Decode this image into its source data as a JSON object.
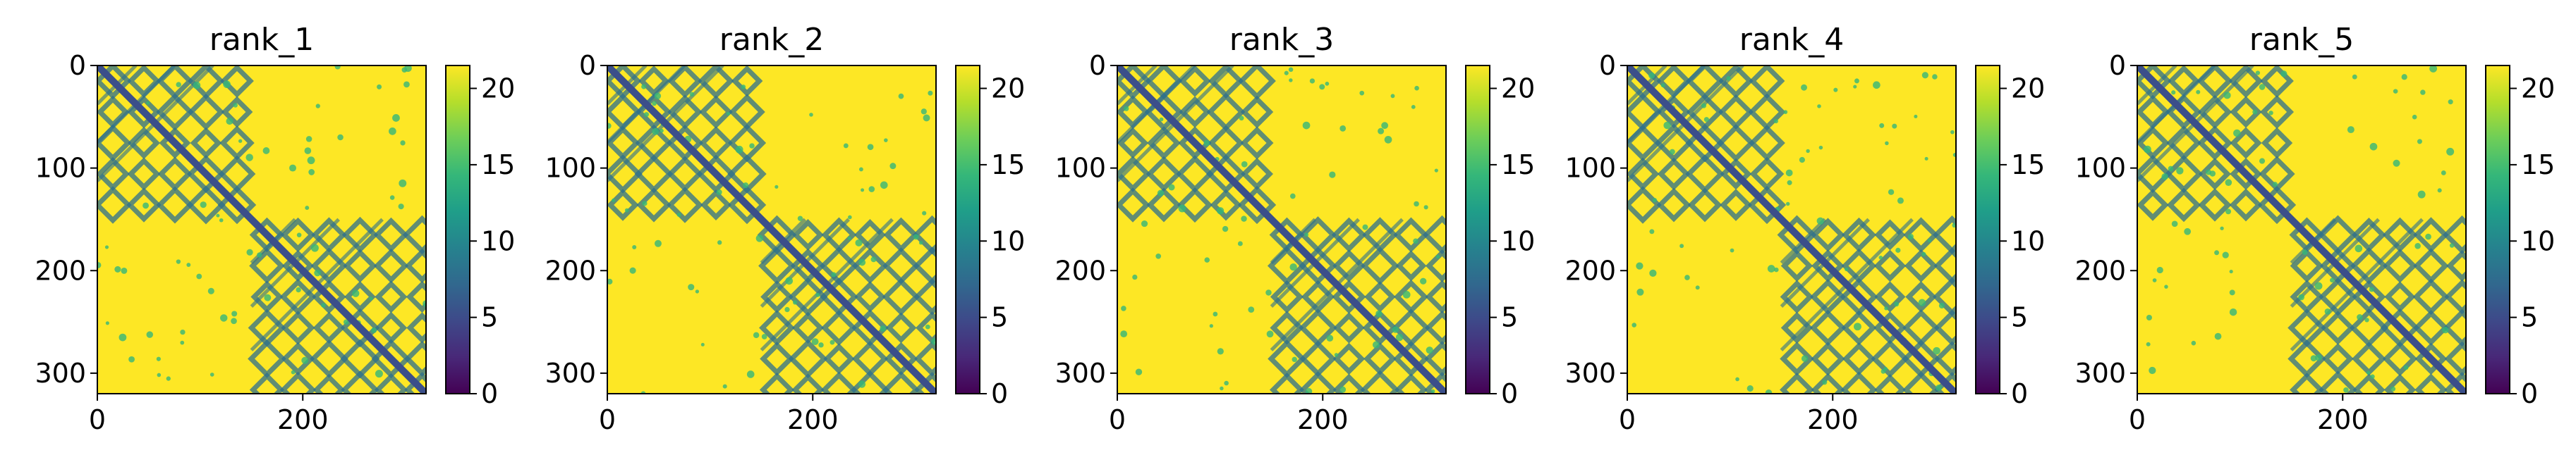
{
  "figure": {
    "background": "#ffffff"
  },
  "chart_data": [
    {
      "type": "heatmap",
      "title": "rank_1",
      "xlim": [
        0,
        320
      ],
      "ylim": [
        320,
        0
      ],
      "x_ticks": [
        0,
        200
      ],
      "y_ticks": [
        0,
        100,
        200,
        300
      ],
      "colorbar": {
        "min": 0,
        "max": 21.5,
        "ticks": [
          0,
          5,
          10,
          15,
          20
        ],
        "colormap": "viridis"
      },
      "features": {
        "diagonal": {
          "from": [
            0,
            0
          ],
          "to": [
            320,
            320
          ],
          "value": 3
        },
        "blocks": [
          {
            "x": [
              0,
              150
            ],
            "y": [
              0,
              150
            ],
            "value": 6
          },
          {
            "x": [
              150,
              320
            ],
            "y": [
              150,
              320
            ],
            "value": 6
          }
        ]
      }
    },
    {
      "type": "heatmap",
      "title": "rank_2",
      "xlim": [
        0,
        320
      ],
      "ylim": [
        320,
        0
      ],
      "x_ticks": [
        0,
        200
      ],
      "y_ticks": [
        0,
        100,
        200,
        300
      ],
      "colorbar": {
        "min": 0,
        "max": 21.5,
        "ticks": [
          0,
          5,
          10,
          15,
          20
        ],
        "colormap": "viridis"
      },
      "features": {
        "diagonal": {
          "from": [
            0,
            0
          ],
          "to": [
            320,
            320
          ],
          "value": 3
        },
        "blocks": [
          {
            "x": [
              0,
              150
            ],
            "y": [
              0,
              150
            ],
            "value": 6
          },
          {
            "x": [
              150,
              320
            ],
            "y": [
              150,
              320
            ],
            "value": 6
          }
        ]
      }
    },
    {
      "type": "heatmap",
      "title": "rank_3",
      "xlim": [
        0,
        320
      ],
      "ylim": [
        320,
        0
      ],
      "x_ticks": [
        0,
        200
      ],
      "y_ticks": [
        0,
        100,
        200,
        300
      ],
      "colorbar": {
        "min": 0,
        "max": 21.5,
        "ticks": [
          0,
          5,
          10,
          15,
          20
        ],
        "colormap": "viridis"
      },
      "features": {
        "diagonal": {
          "from": [
            0,
            0
          ],
          "to": [
            320,
            320
          ],
          "value": 3
        },
        "blocks": [
          {
            "x": [
              0,
              150
            ],
            "y": [
              0,
              150
            ],
            "value": 6
          },
          {
            "x": [
              150,
              320
            ],
            "y": [
              150,
              320
            ],
            "value": 6
          }
        ]
      }
    },
    {
      "type": "heatmap",
      "title": "rank_4",
      "xlim": [
        0,
        320
      ],
      "ylim": [
        320,
        0
      ],
      "x_ticks": [
        0,
        200
      ],
      "y_ticks": [
        0,
        100,
        200,
        300
      ],
      "colorbar": {
        "min": 0,
        "max": 21.5,
        "ticks": [
          0,
          5,
          10,
          15,
          20
        ],
        "colormap": "viridis"
      },
      "features": {
        "diagonal": {
          "from": [
            0,
            0
          ],
          "to": [
            320,
            320
          ],
          "value": 3
        },
        "blocks": [
          {
            "x": [
              0,
              150
            ],
            "y": [
              0,
              150
            ],
            "value": 6
          },
          {
            "x": [
              150,
              320
            ],
            "y": [
              150,
              320
            ],
            "value": 6
          }
        ]
      }
    },
    {
      "type": "heatmap",
      "title": "rank_5",
      "xlim": [
        0,
        320
      ],
      "ylim": [
        320,
        0
      ],
      "x_ticks": [
        0,
        200
      ],
      "y_ticks": [
        0,
        100,
        200,
        300
      ],
      "colorbar": {
        "min": 0,
        "max": 21.5,
        "ticks": [
          0,
          5,
          10,
          15,
          20
        ],
        "colormap": "viridis"
      },
      "features": {
        "diagonal": {
          "from": [
            0,
            0
          ],
          "to": [
            320,
            320
          ],
          "value": 3
        },
        "blocks": [
          {
            "x": [
              0,
              150
            ],
            "y": [
              0,
              150
            ],
            "value": 6
          },
          {
            "x": [
              150,
              320
            ],
            "y": [
              150,
              320
            ],
            "value": 6
          }
        ]
      }
    }
  ],
  "palette": {
    "viridis": [
      "#440154",
      "#482878",
      "#3e4989",
      "#31688e",
      "#26828e",
      "#1f9e89",
      "#35b779",
      "#6ece58",
      "#b5de2b",
      "#fde725"
    ],
    "background_value_color": "#fde725",
    "contact_color": "#2c6f8e",
    "diagonal_color": "#3b4f8a"
  }
}
